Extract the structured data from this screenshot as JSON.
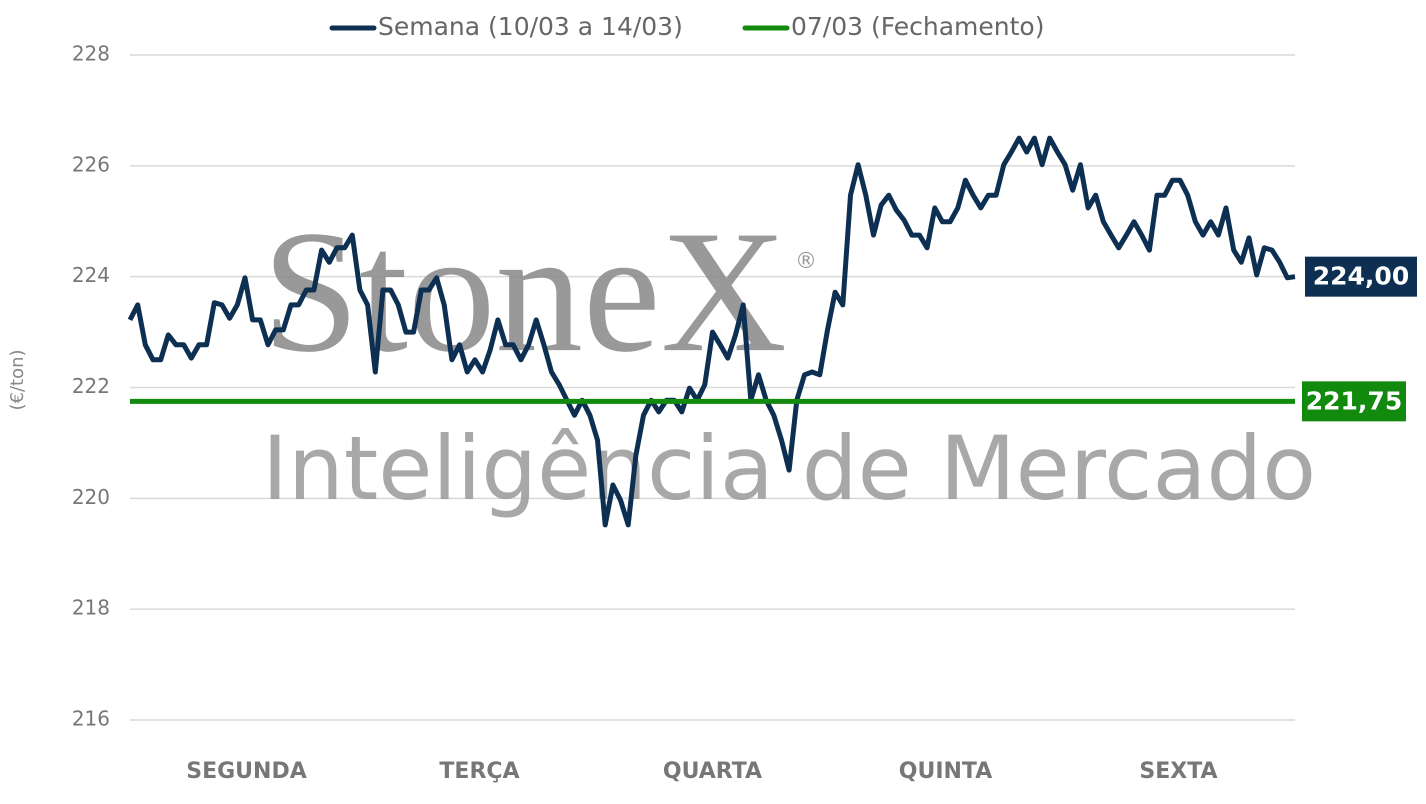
{
  "chart_data": {
    "type": "line",
    "watermark": {
      "brand": "StoneX",
      "mark": "®",
      "tagline": "Inteligência de Mercado"
    },
    "ylabel": "(€/ton)",
    "x_labels": [
      "SEGUNDA",
      "TERÇA",
      "QUARTA",
      "QUINTA",
      "SEXTA"
    ],
    "ylim": [
      216,
      228
    ],
    "yticks": [
      216,
      218,
      220,
      222,
      224,
      226,
      228
    ],
    "grid": true,
    "legend": "top",
    "series": [
      {
        "name": "Semana (10/03 a 14/03)",
        "color": "#0d2f52",
        "end_label": "224,00",
        "values": [
          223.22,
          223.49,
          222.77,
          222.5,
          222.5,
          222.95,
          222.77,
          222.77,
          222.53,
          222.77,
          222.77,
          223.53,
          223.49,
          223.25,
          223.49,
          223.98,
          223.22,
          223.22,
          222.77,
          223.04,
          223.04,
          223.49,
          223.49,
          223.76,
          223.76,
          224.48,
          224.26,
          224.52,
          224.52,
          224.75,
          223.76,
          223.49,
          222.28,
          223.76,
          223.76,
          223.49,
          223.0,
          223.0,
          223.76,
          223.76,
          223.98,
          223.49,
          222.5,
          222.77,
          222.28,
          222.5,
          222.28,
          222.68,
          223.22,
          222.77,
          222.77,
          222.5,
          222.77,
          223.22,
          222.77,
          222.28,
          222.05,
          221.77,
          221.5,
          221.77,
          221.5,
          221.05,
          219.52,
          220.24,
          219.97,
          219.52,
          220.78,
          221.5,
          221.77,
          221.56,
          221.77,
          221.77,
          221.56,
          221.99,
          221.77,
          222.05,
          223.0,
          222.77,
          222.53,
          222.95,
          223.49,
          221.77,
          222.23,
          221.77,
          221.5,
          221.05,
          220.51,
          221.77,
          222.23,
          222.28,
          222.23,
          223.04,
          223.72,
          223.49,
          225.47,
          226.02,
          225.47,
          224.75,
          225.29,
          225.47,
          225.2,
          225.02,
          224.75,
          224.75,
          224.52,
          225.24,
          224.99,
          224.99,
          225.24,
          225.74,
          225.47,
          225.24,
          225.47,
          225.47,
          226.02,
          226.25,
          226.5,
          226.25,
          226.5,
          226.02,
          226.5,
          226.25,
          226.02,
          225.56,
          226.02,
          225.24,
          225.47,
          224.99,
          224.75,
          224.52,
          224.75,
          224.99,
          224.75,
          224.48,
          225.47,
          225.47,
          225.74,
          225.74,
          225.47,
          224.99,
          224.75,
          224.99,
          224.75,
          225.24,
          224.48,
          224.26,
          224.7,
          224.03,
          224.52,
          224.48,
          224.26,
          223.98,
          224.0
        ]
      },
      {
        "name": "07/03 (Fechamento)",
        "color": "#118a0e",
        "end_label": "221,75",
        "values": [
          221.75
        ]
      }
    ]
  }
}
